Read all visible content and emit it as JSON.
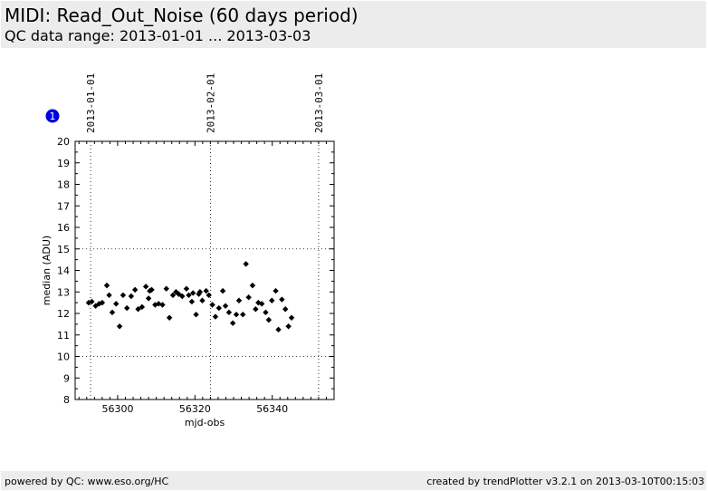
{
  "header": {
    "title": "MIDI: Read_Out_Noise (60 days period)",
    "subtitle": "QC data range: 2013-01-01 ... 2013-03-03"
  },
  "footer": {
    "left": "powered by QC: www.eso.org/HC",
    "right": "created by trendPlotter v3.2.1 on 2013-03-10T00:15:03"
  },
  "badge": {
    "label": "1",
    "color": "#0000dd"
  },
  "chart_data": {
    "type": "scatter",
    "xlabel": "mjd-obs",
    "ylabel": "median (ADU)",
    "xlim": [
      56289,
      56356
    ],
    "ylim": [
      8,
      20
    ],
    "xticks": [
      56300,
      56320,
      56340
    ],
    "yticks": [
      8,
      9,
      10,
      11,
      12,
      13,
      14,
      15,
      16,
      17,
      18,
      19,
      20
    ],
    "hlines": [
      10,
      15
    ],
    "date_markers": [
      {
        "x": 56293.0,
        "label": "2013-01-01"
      },
      {
        "x": 56324.0,
        "label": "2013-02-01"
      },
      {
        "x": 56352.0,
        "label": "2013-03-01"
      }
    ],
    "marker_color": "#000000",
    "points": [
      [
        56292.5,
        12.5
      ],
      [
        56293.3,
        12.55
      ],
      [
        56294.3,
        12.35
      ],
      [
        56295.2,
        12.45
      ],
      [
        56296.0,
        12.5
      ],
      [
        56297.2,
        13.3
      ],
      [
        56297.8,
        12.85
      ],
      [
        56298.6,
        12.05
      ],
      [
        56299.6,
        12.45
      ],
      [
        56300.5,
        11.4
      ],
      [
        56301.4,
        12.85
      ],
      [
        56302.4,
        12.25
      ],
      [
        56303.5,
        12.8
      ],
      [
        56304.5,
        13.1
      ],
      [
        56305.3,
        12.2
      ],
      [
        56306.3,
        12.3
      ],
      [
        56307.3,
        13.25
      ],
      [
        56308.0,
        12.7
      ],
      [
        56308.3,
        13.05
      ],
      [
        56308.8,
        13.1
      ],
      [
        56309.7,
        12.4
      ],
      [
        56310.6,
        12.45
      ],
      [
        56311.6,
        12.4
      ],
      [
        56312.6,
        13.15
      ],
      [
        56313.4,
        11.8
      ],
      [
        56314.3,
        12.85
      ],
      [
        56315.1,
        13.0
      ],
      [
        56315.8,
        12.9
      ],
      [
        56316.7,
        12.8
      ],
      [
        56317.8,
        13.15
      ],
      [
        56318.4,
        12.85
      ],
      [
        56319.2,
        12.55
      ],
      [
        56319.5,
        12.95
      ],
      [
        56320.3,
        11.95
      ],
      [
        56321.0,
        12.9
      ],
      [
        56321.3,
        13.0
      ],
      [
        56321.9,
        12.6
      ],
      [
        56322.9,
        13.05
      ],
      [
        56323.6,
        12.85
      ],
      [
        56324.5,
        12.4
      ],
      [
        56325.3,
        11.85
      ],
      [
        56326.2,
        12.25
      ],
      [
        56327.2,
        13.05
      ],
      [
        56327.9,
        12.35
      ],
      [
        56328.8,
        12.05
      ],
      [
        56329.8,
        11.55
      ],
      [
        56330.7,
        11.95
      ],
      [
        56331.4,
        12.6
      ],
      [
        56332.4,
        11.95
      ],
      [
        56333.2,
        14.3
      ],
      [
        56333.9,
        12.75
      ],
      [
        56334.9,
        13.3
      ],
      [
        56335.7,
        12.2
      ],
      [
        56336.4,
        12.5
      ],
      [
        56337.3,
        12.45
      ],
      [
        56338.3,
        12.05
      ],
      [
        56339.1,
        11.7
      ],
      [
        56339.9,
        12.6
      ],
      [
        56340.9,
        13.05
      ],
      [
        56341.6,
        11.25
      ],
      [
        56342.5,
        12.65
      ],
      [
        56343.4,
        12.2
      ],
      [
        56344.2,
        11.4
      ],
      [
        56345.0,
        11.8
      ]
    ]
  }
}
